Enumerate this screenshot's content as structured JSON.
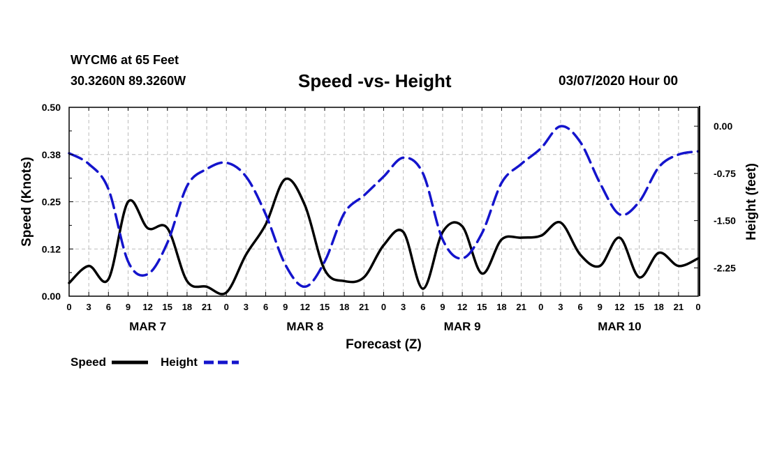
{
  "header": {
    "station": "WYCM6 at 65 Feet",
    "coords": "30.3260N 89.3260W",
    "title": "Speed -vs- Height",
    "datetime": "03/07/2020 Hour 00"
  },
  "legend": {
    "speed_label": "Speed",
    "height_label": "Height"
  },
  "colors": {
    "speed": "#000000",
    "height": "#1414cc",
    "grid": "#bbbbbb"
  },
  "chart_data": {
    "type": "line",
    "title": "Speed -vs- Height",
    "xlabel": "Forecast (Z)",
    "ylabel_left": "Speed (Knots)",
    "ylabel_right": "Height (feet)",
    "x_range_hours": [
      0,
      96
    ],
    "x_tick_labels": [
      "0",
      "3",
      "6",
      "9",
      "12",
      "15",
      "18",
      "21",
      "0",
      "3",
      "6",
      "9",
      "12",
      "15",
      "18",
      "21",
      "0",
      "3",
      "6",
      "9",
      "12",
      "15",
      "18",
      "21",
      "0",
      "3",
      "6",
      "9",
      "12",
      "15",
      "18",
      "21",
      "0"
    ],
    "day_labels": [
      {
        "label": "MAR 7",
        "hour": 12
      },
      {
        "label": "MAR 8",
        "hour": 36
      },
      {
        "label": "MAR 9",
        "hour": 60
      },
      {
        "label": "MAR 10",
        "hour": 84
      }
    ],
    "y_left": {
      "range": [
        0,
        0.5
      ],
      "ticks": [
        "0.00",
        "0.12",
        "0.25",
        "0.38",
        "0.50"
      ],
      "tick_values": [
        0,
        0.125,
        0.25,
        0.375,
        0.5
      ]
    },
    "y_right": {
      "range": [
        -2.7,
        0.3
      ],
      "ticks": [
        "0.00",
        "-0.75",
        "-1.50",
        "-2.25"
      ],
      "tick_values": [
        0,
        -0.75,
        -1.5,
        -2.25
      ]
    },
    "grid": true,
    "legend_position": "bottom-left",
    "series": [
      {
        "name": "Speed",
        "axis": "left",
        "style": "solid",
        "points": [
          [
            0,
            0.035
          ],
          [
            3,
            0.08
          ],
          [
            6,
            0.045
          ],
          [
            9,
            0.25
          ],
          [
            12,
            0.18
          ],
          [
            15,
            0.18
          ],
          [
            18,
            0.04
          ],
          [
            21,
            0.025
          ],
          [
            24,
            0.01
          ],
          [
            27,
            0.11
          ],
          [
            30,
            0.19
          ],
          [
            33,
            0.31
          ],
          [
            36,
            0.24
          ],
          [
            39,
            0.07
          ],
          [
            42,
            0.04
          ],
          [
            45,
            0.05
          ],
          [
            48,
            0.135
          ],
          [
            51,
            0.17
          ],
          [
            54,
            0.02
          ],
          [
            57,
            0.17
          ],
          [
            60,
            0.185
          ],
          [
            63,
            0.06
          ],
          [
            66,
            0.15
          ],
          [
            69,
            0.155
          ],
          [
            72,
            0.16
          ],
          [
            75,
            0.195
          ],
          [
            78,
            0.11
          ],
          [
            81,
            0.08
          ],
          [
            84,
            0.155
          ],
          [
            87,
            0.05
          ],
          [
            90,
            0.115
          ],
          [
            93,
            0.08
          ],
          [
            96,
            0.1
          ]
        ]
      },
      {
        "name": "Height",
        "axis": "right",
        "style": "dashed",
        "points": [
          [
            0,
            -0.43
          ],
          [
            3,
            -0.6
          ],
          [
            6,
            -1.0
          ],
          [
            9,
            -2.15
          ],
          [
            12,
            -2.35
          ],
          [
            15,
            -1.85
          ],
          [
            18,
            -0.95
          ],
          [
            21,
            -0.68
          ],
          [
            24,
            -0.58
          ],
          [
            27,
            -0.8
          ],
          [
            30,
            -1.4
          ],
          [
            33,
            -2.2
          ],
          [
            36,
            -2.55
          ],
          [
            39,
            -2.15
          ],
          [
            42,
            -1.38
          ],
          [
            45,
            -1.1
          ],
          [
            48,
            -0.8
          ],
          [
            51,
            -0.5
          ],
          [
            54,
            -0.75
          ],
          [
            57,
            -1.8
          ],
          [
            60,
            -2.1
          ],
          [
            63,
            -1.7
          ],
          [
            66,
            -0.9
          ],
          [
            69,
            -0.6
          ],
          [
            72,
            -0.35
          ],
          [
            75,
            0.0
          ],
          [
            78,
            -0.25
          ],
          [
            81,
            -0.9
          ],
          [
            84,
            -1.4
          ],
          [
            87,
            -1.2
          ],
          [
            90,
            -0.65
          ],
          [
            93,
            -0.45
          ],
          [
            96,
            -0.4
          ]
        ]
      }
    ]
  }
}
